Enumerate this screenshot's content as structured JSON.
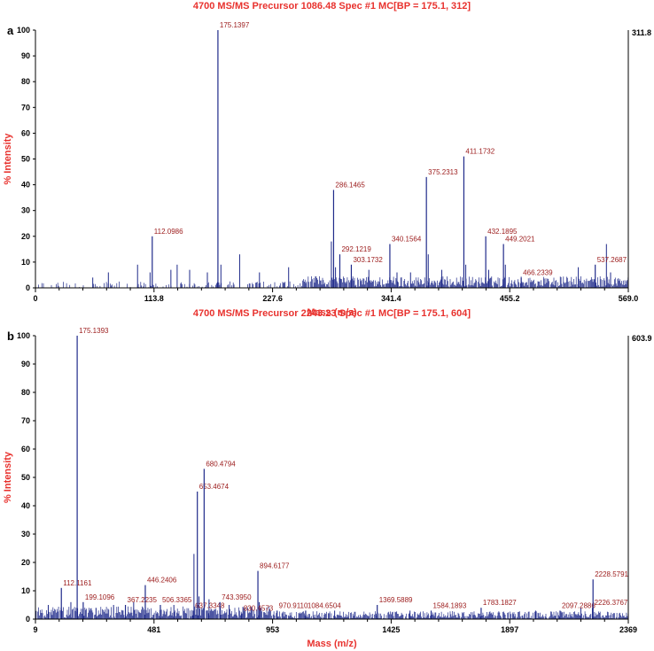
{
  "chart_data": [
    {
      "type": "bar",
      "panel": "a",
      "title": "4700 MS/MS Precursor 1086.48 Spec #1 MC[BP = 175.1, 312]",
      "xlabel": "Mass (m/z)",
      "ylabel": "% Intensity",
      "xlim": [
        0,
        569.0
      ],
      "ylim": [
        0,
        100
      ],
      "xticks": [
        "0",
        "113.8",
        "227.6",
        "341.4",
        "455.2",
        "569.0"
      ],
      "yticks": [
        "0",
        "10",
        "20",
        "30",
        "40",
        "50",
        "60",
        "70",
        "80",
        "90",
        "100"
      ],
      "max_intensity": "311.8",
      "grid": false,
      "color": "#1f2a8a",
      "labeled_peaks": [
        {
          "mz": 112.0986,
          "intensity": 20,
          "label": "112.0986"
        },
        {
          "mz": 175.1397,
          "intensity": 100,
          "label": "175.1397"
        },
        {
          "mz": 286.1465,
          "intensity": 38,
          "label": "286.1465"
        },
        {
          "mz": 292.1219,
          "intensity": 13,
          "label": "292.1219"
        },
        {
          "mz": 303.1732,
          "intensity": 9,
          "label": "303.1732"
        },
        {
          "mz": 340.1564,
          "intensity": 17,
          "label": "340.1564"
        },
        {
          "mz": 375.2313,
          "intensity": 43,
          "label": "375.2313"
        },
        {
          "mz": 411.1732,
          "intensity": 51,
          "label": "411.1732"
        },
        {
          "mz": 432.1895,
          "intensity": 20,
          "label": "432.1895"
        },
        {
          "mz": 449.2021,
          "intensity": 17,
          "label": "449.2021"
        },
        {
          "mz": 466.2339,
          "intensity": 4,
          "label": "466.2339"
        },
        {
          "mz": 537.2687,
          "intensity": 9,
          "label": "537.2687"
        }
      ],
      "other_peaks": [
        {
          "mz": 55,
          "intensity": 4
        },
        {
          "mz": 70,
          "intensity": 6
        },
        {
          "mz": 98,
          "intensity": 9
        },
        {
          "mz": 110,
          "intensity": 6
        },
        {
          "mz": 130,
          "intensity": 7
        },
        {
          "mz": 136,
          "intensity": 9
        },
        {
          "mz": 148,
          "intensity": 7
        },
        {
          "mz": 165,
          "intensity": 6
        },
        {
          "mz": 178,
          "intensity": 9
        },
        {
          "mz": 196,
          "intensity": 13
        },
        {
          "mz": 215,
          "intensity": 6
        },
        {
          "mz": 243,
          "intensity": 8
        },
        {
          "mz": 284,
          "intensity": 18
        },
        {
          "mz": 288,
          "intensity": 8
        },
        {
          "mz": 320,
          "intensity": 7
        },
        {
          "mz": 347,
          "intensity": 6
        },
        {
          "mz": 360,
          "intensity": 6
        },
        {
          "mz": 377,
          "intensity": 13
        },
        {
          "mz": 390,
          "intensity": 7
        },
        {
          "mz": 413,
          "intensity": 9
        },
        {
          "mz": 435,
          "intensity": 7
        },
        {
          "mz": 451,
          "intensity": 9
        },
        {
          "mz": 521,
          "intensity": 8
        },
        {
          "mz": 548,
          "intensity": 17
        },
        {
          "mz": 552,
          "intensity": 6
        }
      ]
    },
    {
      "type": "bar",
      "panel": "b",
      "title": "4700 MS/MS Precursor 2243.23 Spec #1 MC[BP = 175.1, 604]",
      "xlabel": "Mass (m/z)",
      "ylabel": "% Intensity",
      "xlim": [
        9,
        2369
      ],
      "ylim": [
        0,
        100
      ],
      "xticks": [
        "9",
        "481",
        "953",
        "1425",
        "1897",
        "2369"
      ],
      "yticks": [
        "0",
        "10",
        "20",
        "30",
        "40",
        "50",
        "60",
        "70",
        "80",
        "90",
        "100"
      ],
      "max_intensity": "603.9",
      "grid": false,
      "color": "#1f2a8a",
      "labeled_peaks": [
        {
          "mz": 112.1161,
          "intensity": 11,
          "label": "112.1161"
        },
        {
          "mz": 175.1393,
          "intensity": 100,
          "label": "175.1393"
        },
        {
          "mz": 199.1096,
          "intensity": 6,
          "label": "199.1096"
        },
        {
          "mz": 367.2235,
          "intensity": 5,
          "label": "367.2235"
        },
        {
          "mz": 446.2406,
          "intensity": 12,
          "label": "446.2406"
        },
        {
          "mz": 506.3365,
          "intensity": 5,
          "label": "506.3365"
        },
        {
          "mz": 637.3348,
          "intensity": 3,
          "label": "637.3348"
        },
        {
          "mz": 653.4674,
          "intensity": 45,
          "label": "653.4674"
        },
        {
          "mz": 680.4794,
          "intensity": 53,
          "label": "680.4794"
        },
        {
          "mz": 743.395,
          "intensity": 6,
          "label": "743.3950"
        },
        {
          "mz": 830.4573,
          "intensity": 2,
          "label": "830.4573"
        },
        {
          "mz": 894.6177,
          "intensity": 17,
          "label": "894.6177"
        },
        {
          "mz": 970.911,
          "intensity": 3,
          "label": "970.9110"
        },
        {
          "mz": 1084.6504,
          "intensity": 3,
          "label": "1084.6504"
        },
        {
          "mz": 1369.5889,
          "intensity": 5,
          "label": "1369.5889"
        },
        {
          "mz": 1584.1893,
          "intensity": 3,
          "label": "1584.1893"
        },
        {
          "mz": 1783.1827,
          "intensity": 4,
          "label": "1783.1827"
        },
        {
          "mz": 2097.2886,
          "intensity": 3,
          "label": "2097.2886"
        },
        {
          "mz": 2226.3767,
          "intensity": 4,
          "label": "2226.3767"
        },
        {
          "mz": 2228.5791,
          "intensity": 14,
          "label": "2228.5791"
        }
      ],
      "other_peaks": [
        {
          "mz": 60,
          "intensity": 5
        },
        {
          "mz": 150,
          "intensity": 6
        },
        {
          "mz": 250,
          "intensity": 4
        },
        {
          "mz": 320,
          "intensity": 5
        },
        {
          "mz": 400,
          "intensity": 6
        },
        {
          "mz": 560,
          "intensity": 5
        },
        {
          "mz": 640,
          "intensity": 23
        },
        {
          "mz": 660,
          "intensity": 8
        },
        {
          "mz": 700,
          "intensity": 7
        },
        {
          "mz": 780,
          "intensity": 5
        },
        {
          "mz": 900,
          "intensity": 6
        },
        {
          "mz": 1200,
          "intensity": 3
        },
        {
          "mz": 1500,
          "intensity": 3
        },
        {
          "mz": 2000,
          "intensity": 3
        },
        {
          "mz": 2180,
          "intensity": 4
        }
      ]
    }
  ]
}
